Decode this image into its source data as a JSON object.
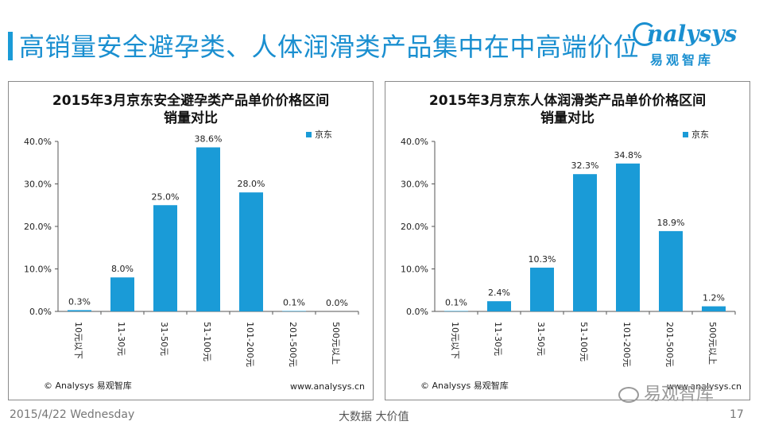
{
  "page": {
    "title": "高销量安全避孕类、人体润滑类产品集中在中高端价位",
    "logo_text": "nalysys",
    "logo_cn": "易观智库",
    "footer_date": "2015/4/22 Wednesday",
    "footer_center": "大数据   大价值",
    "footer_page": "17",
    "wechat_text": "易观智库"
  },
  "chart_data": [
    {
      "type": "bar",
      "title": "2015年3月京东安全避孕类产品单价价格区间销量对比",
      "title_lines": [
        "2015年3月京东安全避孕类产品单价价格区间",
        "销量对比"
      ],
      "categories": [
        "10元以下",
        "11-30元",
        "31-50元",
        "51-100元",
        "101-200元",
        "201-500元",
        "500元以上"
      ],
      "series": [
        {
          "name": "京东",
          "values": [
            0.3,
            8.0,
            25.0,
            38.6,
            28.0,
            0.1,
            0.0
          ]
        }
      ],
      "value_labels": [
        "0.3%",
        "8.0%",
        "25.0%",
        "38.6%",
        "28.0%",
        "0.1%",
        "0.0%"
      ],
      "ylim": [
        0,
        40
      ],
      "yticks": [
        "0.0%",
        "10.0%",
        "20.0%",
        "30.0%",
        "40.0%"
      ],
      "legend_position": "top-right",
      "color": "#1a9bd7",
      "source": "© Analysys 易观智库",
      "url": "www.analysys.cn"
    },
    {
      "type": "bar",
      "title": "2015年3月京东人体润滑类产品单价价格区间销量对比",
      "title_lines": [
        "2015年3月京东人体润滑类产品单价价格区间",
        "销量对比"
      ],
      "categories": [
        "10元以下",
        "11-30元",
        "31-50元",
        "51-100元",
        "101-200元",
        "201-500元",
        "500元以上"
      ],
      "series": [
        {
          "name": "京东",
          "values": [
            0.1,
            2.4,
            10.3,
            32.3,
            34.8,
            18.9,
            1.2
          ]
        }
      ],
      "value_labels": [
        "0.1%",
        "2.4%",
        "10.3%",
        "32.3%",
        "34.8%",
        "18.9%",
        "1.2%"
      ],
      "ylim": [
        0,
        40
      ],
      "yticks": [
        "0.0%",
        "10.0%",
        "20.0%",
        "30.0%",
        "40.0%"
      ],
      "legend_position": "top-right",
      "color": "#1a9bd7",
      "source": "© Analysys 易观智库",
      "url": "www.analysys.cn"
    }
  ]
}
